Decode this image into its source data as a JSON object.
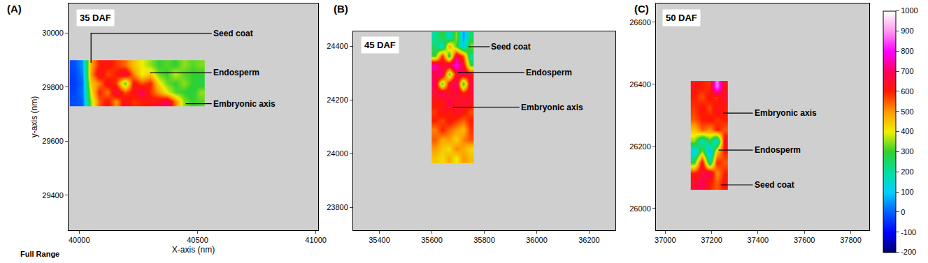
{
  "chart_data": [
    {
      "type": "heatmap",
      "panel": "(A)",
      "title": "35 DAF",
      "x_label": "X-axis (nm)",
      "y_label": "y-axis (nm)",
      "note": "Full Range",
      "annotations": [
        "Seed coat",
        "Endosperm",
        "Embryonic axis"
      ],
      "grid": false,
      "xlim": [
        39955,
        41010
      ],
      "xticks": [
        40000,
        40500,
        41000
      ],
      "ylim": [
        29270,
        30110
      ],
      "yticks": [
        29400,
        29600,
        29800,
        30000
      ],
      "x": [
        39978,
        40014,
        40049,
        40085,
        40121,
        40156,
        40192,
        40228,
        40263,
        40299,
        40335,
        40370,
        40406,
        40442,
        40477,
        40513
      ],
      "y": [
        29747,
        29781,
        29815,
        29849,
        29883
      ],
      "z": [
        [
          -20,
          0,
          350,
          550,
          620,
          500,
          650,
          580,
          600,
          620,
          640,
          700,
          520,
          350,
          300,
          320
        ],
        [
          -30,
          20,
          400,
          600,
          520,
          680,
          560,
          620,
          700,
          580,
          500,
          400,
          320,
          300,
          280,
          350
        ],
        [
          -40,
          10,
          450,
          520,
          640,
          580,
          300,
          620,
          560,
          600,
          420,
          330,
          300,
          350,
          300,
          280
        ],
        [
          -30,
          30,
          500,
          650,
          560,
          600,
          680,
          520,
          400,
          450,
          330,
          300,
          380,
          320,
          300,
          300
        ],
        [
          -20,
          50,
          480,
          600,
          620,
          580,
          540,
          450,
          400,
          350,
          300,
          320,
          300,
          350,
          320,
          340
        ]
      ]
    },
    {
      "type": "heatmap",
      "panel": "(B)",
      "title": "45 DAF",
      "annotations": [
        "Seed coat",
        "Endosperm",
        "Embryonic axis"
      ],
      "grid": false,
      "xlim": [
        35300,
        36300
      ],
      "xticks": [
        35400,
        35600,
        35800,
        36000,
        36200
      ],
      "ylim": [
        23715,
        24455
      ],
      "yticks": [
        23800,
        24000,
        24200,
        24400
      ],
      "x": [
        35613,
        35640,
        35667,
        35693,
        35720,
        35747
      ],
      "y": [
        23983,
        24018,
        24053,
        24088,
        24122,
        24157,
        24192,
        24226,
        24261,
        24296,
        24330,
        24365,
        24400,
        24435
      ],
      "z": [
        [
          450,
          420,
          480,
          400,
          500,
          460
        ],
        [
          500,
          450,
          420,
          520,
          480,
          430
        ],
        [
          550,
          480,
          500,
          430,
          520,
          560
        ],
        [
          520,
          600,
          540,
          500,
          460,
          580
        ],
        [
          600,
          560,
          620,
          580,
          540,
          600
        ],
        [
          580,
          640,
          600,
          650,
          620,
          560
        ],
        [
          620,
          600,
          700,
          620,
          660,
          640
        ],
        [
          650,
          700,
          620,
          680,
          600,
          650
        ],
        [
          700,
          300,
          650,
          720,
          250,
          680
        ],
        [
          680,
          720,
          300,
          650,
          700,
          620
        ],
        [
          750,
          650,
          700,
          800,
          650,
          300
        ],
        [
          300,
          600,
          250,
          700,
          550,
          200
        ],
        [
          250,
          150,
          500,
          300,
          100,
          350
        ],
        [
          200,
          300,
          150,
          350,
          50,
          250
        ]
      ]
    },
    {
      "type": "heatmap",
      "panel": "(C)",
      "title": "50 DAF",
      "annotations": [
        "Embryonic axis",
        "Endosperm",
        "Seed coat"
      ],
      "grid": false,
      "xlim": [
        36960,
        37880
      ],
      "xticks": [
        37000,
        37200,
        37400,
        37600,
        37800
      ],
      "ylim": [
        25930,
        26660
      ],
      "yticks": [
        26000,
        26200,
        26400,
        26600
      ],
      "x": [
        37126,
        37158,
        37190,
        37222,
        37254
      ],
      "y": [
        26078,
        26113,
        26148,
        26183,
        26218,
        26253,
        26288,
        26323,
        26358,
        26393
      ],
      "z": [
        [
          650,
          700,
          600,
          550,
          620
        ],
        [
          600,
          650,
          700,
          500,
          600
        ],
        [
          300,
          650,
          200,
          600,
          550
        ],
        [
          100,
          350,
          50,
          450,
          600
        ],
        [
          350,
          150,
          300,
          100,
          650
        ],
        [
          450,
          550,
          500,
          600,
          550
        ],
        [
          550,
          600,
          620,
          580,
          600
        ],
        [
          580,
          620,
          560,
          640,
          600
        ],
        [
          600,
          560,
          620,
          580,
          650
        ],
        [
          620,
          600,
          580,
          900,
          620
        ]
      ],
      "colorbar": {
        "range": [
          -200,
          1000
        ],
        "ticks": [
          -200,
          -100,
          0,
          100,
          200,
          300,
          400,
          500,
          600,
          700,
          800,
          900,
          1000
        ]
      }
    }
  ]
}
